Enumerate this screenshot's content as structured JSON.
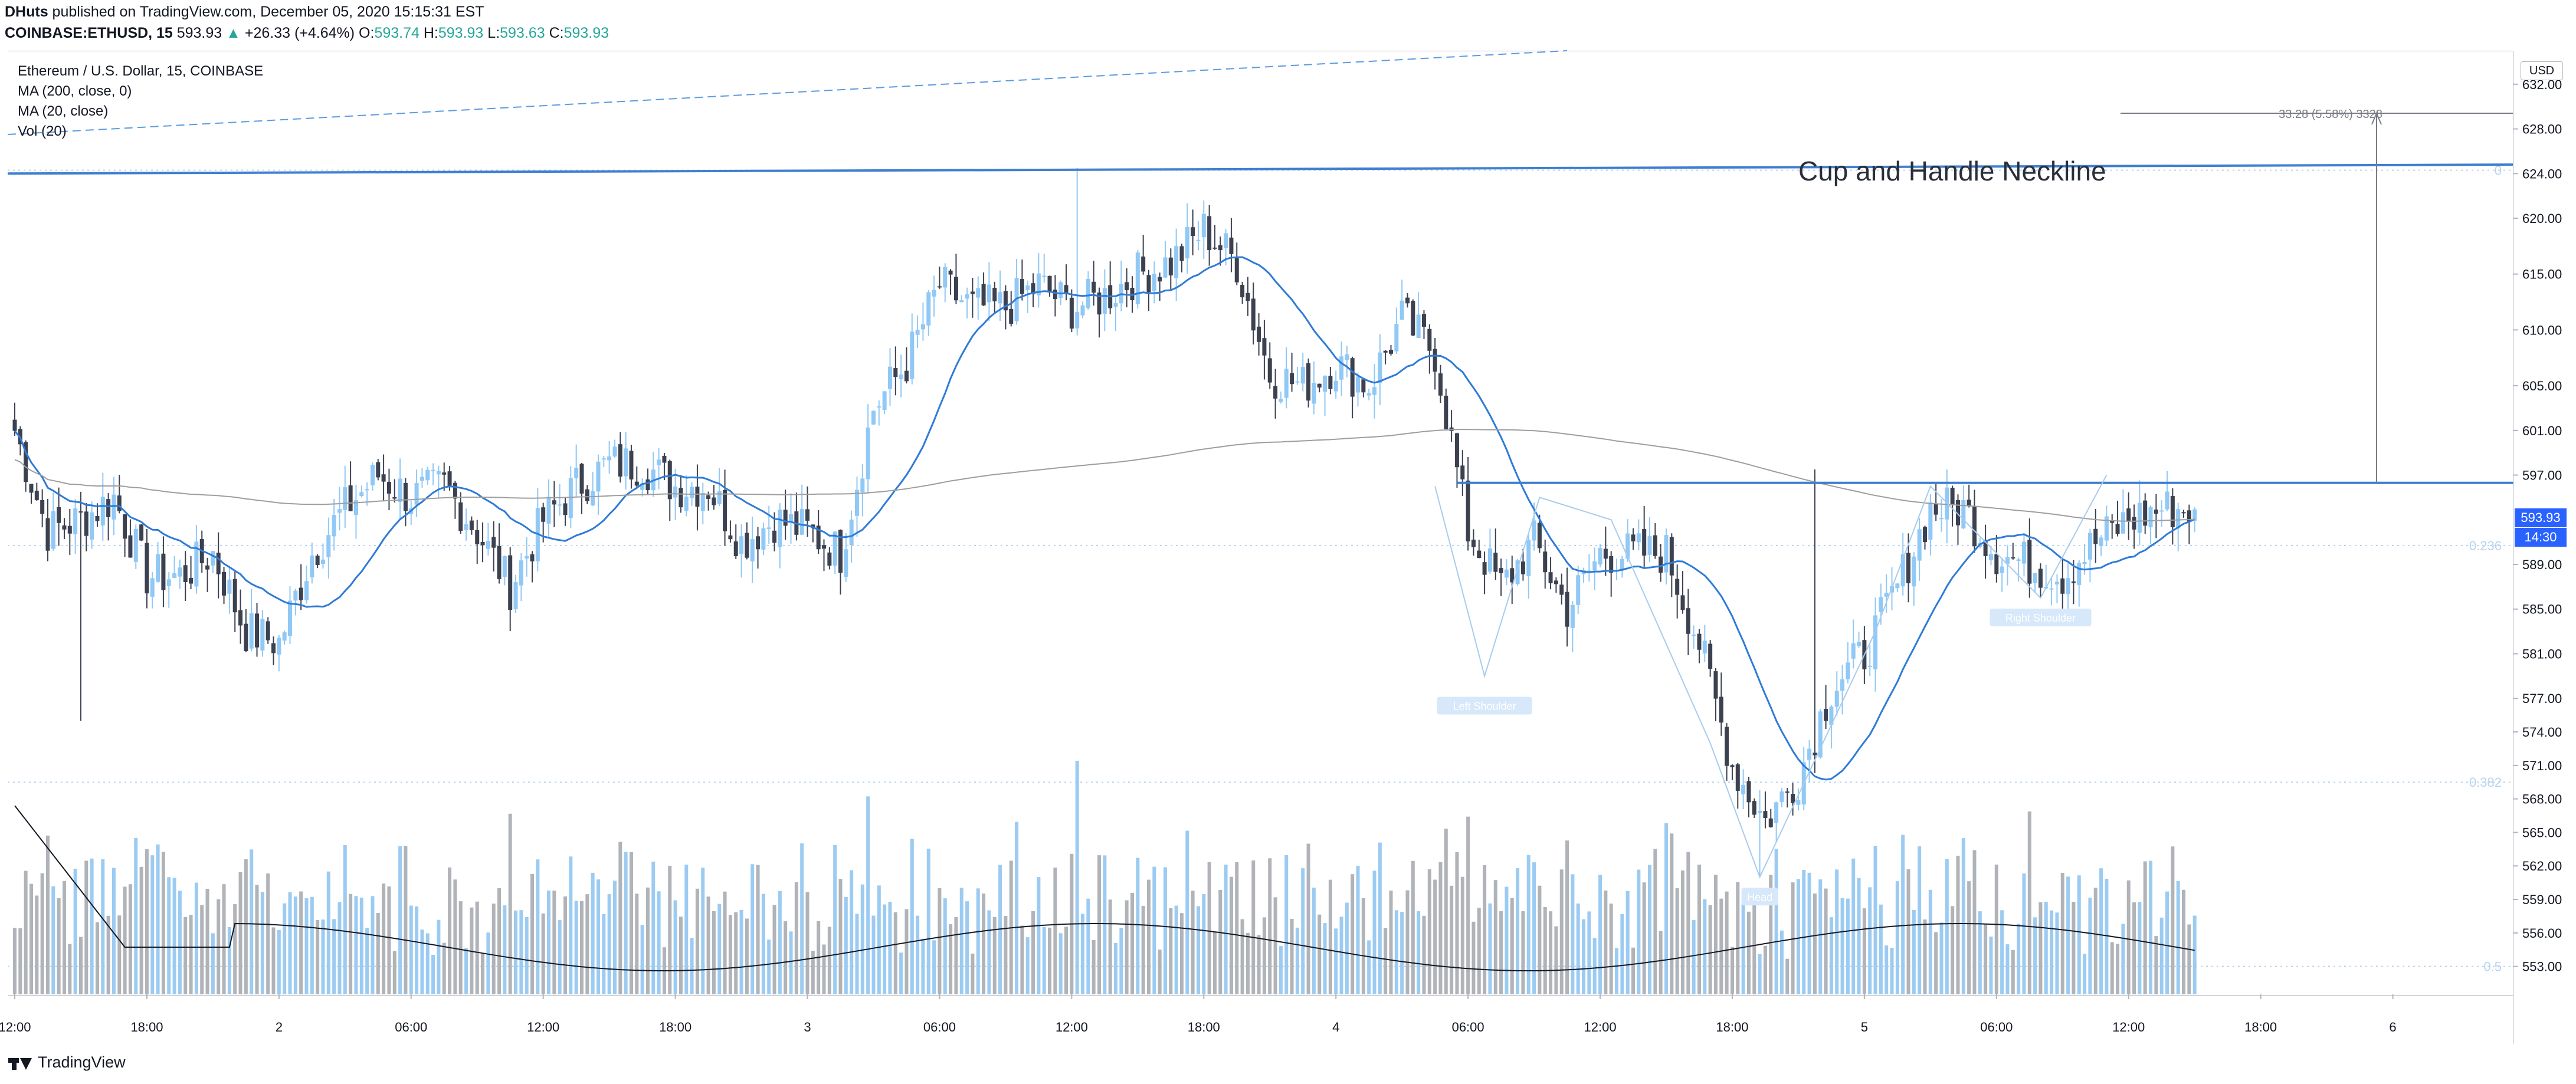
{
  "header": {
    "author": "DHuts",
    "published": " published on TradingView.com, December 05, 2020 15:15:31 EST"
  },
  "quote": {
    "symbol": "COINBASE:ETHUSD, 15",
    "last": "593.93",
    "arrow": "▲",
    "change": "+26.33 (+4.64%)",
    "o_label": "O:",
    "o": "593.74",
    "h_label": "H:",
    "h": "593.93",
    "l_label": "L:",
    "l": "593.63",
    "c_label": "C:",
    "c": "593.93"
  },
  "legend": {
    "title": "Ethereum / U.S. Dollar, 15, COINBASE",
    "ma200": "MA (200, close, 0)",
    "ma20": "MA (20, close)",
    "vol": "Vol (20)"
  },
  "price_scale": {
    "currency": "USD",
    "last_price": "593.93",
    "countdown": "14:30"
  },
  "footer": {
    "brand": "TradingView"
  },
  "colors": {
    "up": "#90c8f6",
    "down": "#3c4150",
    "ma20": "#2f7bd6",
    "ma200": "#9e9e9e",
    "drawing": "#3f7fd0",
    "pattern": "#a8cbed",
    "vol_up": "#9ccbf2",
    "vol_down": "#b0b3b8",
    "fib": "#b9d3ee"
  },
  "chart_data": {
    "type": "candlestick",
    "title": "Ethereum / U.S. Dollar, 15, COINBASE",
    "ylim": [
      550.5,
      635
    ],
    "y_ticks": [
      "632.00",
      "628.00",
      "624.00",
      "620.00",
      "615.00",
      "610.00",
      "605.00",
      "601.00",
      "597.00",
      "593.93",
      "589.00",
      "585.00",
      "581.00",
      "577.00",
      "574.00",
      "571.00",
      "568.00",
      "565.00",
      "562.00",
      "559.00",
      "556.00",
      "553.00"
    ],
    "y_tick_values": [
      632,
      628,
      624,
      620,
      615,
      610,
      605,
      601,
      597,
      593.93,
      589,
      585,
      581,
      577,
      574,
      571,
      568,
      565,
      562,
      559,
      556,
      553
    ],
    "x_ticks": [
      {
        "label": "12:00",
        "t": 0
      },
      {
        "label": "18:00",
        "t": 24
      },
      {
        "label": "2",
        "t": 48
      },
      {
        "label": "06:00",
        "t": 72
      },
      {
        "label": "12:00",
        "t": 96
      },
      {
        "label": "18:00",
        "t": 120
      },
      {
        "label": "3",
        "t": 144
      },
      {
        "label": "06:00",
        "t": 168
      },
      {
        "label": "12:00",
        "t": 192
      },
      {
        "label": "18:00",
        "t": 216
      },
      {
        "label": "4",
        "t": 240
      },
      {
        "label": "06:00",
        "t": 264
      },
      {
        "label": "12:00",
        "t": 288
      },
      {
        "label": "18:00",
        "t": 312
      },
      {
        "label": "5",
        "t": 336
      },
      {
        "label": "06:00",
        "t": 360
      },
      {
        "label": "12:00",
        "t": 384
      },
      {
        "label": "18:00",
        "t": 408
      },
      {
        "label": "6",
        "t": 432
      }
    ],
    "close_anchors": [
      [
        0,
        601
      ],
      [
        6,
        592
      ],
      [
        12,
        593
      ],
      [
        18,
        595
      ],
      [
        24,
        588
      ],
      [
        30,
        588
      ],
      [
        36,
        590
      ],
      [
        42,
        583
      ],
      [
        48,
        582
      ],
      [
        54,
        590
      ],
      [
        60,
        594
      ],
      [
        66,
        597
      ],
      [
        72,
        595
      ],
      [
        78,
        596
      ],
      [
        84,
        592
      ],
      [
        90,
        587
      ],
      [
        96,
        593
      ],
      [
        102,
        596
      ],
      [
        108,
        598
      ],
      [
        114,
        598
      ],
      [
        120,
        596
      ],
      [
        126,
        596
      ],
      [
        132,
        591
      ],
      [
        138,
        593
      ],
      [
        144,
        592
      ],
      [
        150,
        590
      ],
      [
        156,
        603
      ],
      [
        162,
        607
      ],
      [
        168,
        614
      ],
      [
        174,
        612
      ],
      [
        180,
        612
      ],
      [
        186,
        614
      ],
      [
        192,
        612
      ],
      [
        198,
        613
      ],
      [
        204,
        615
      ],
      [
        210,
        616
      ],
      [
        216,
        619
      ],
      [
        222,
        616
      ],
      [
        228,
        606
      ],
      [
        234,
        605
      ],
      [
        240,
        607
      ],
      [
        246,
        605
      ],
      [
        252,
        611
      ],
      [
        258,
        608
      ],
      [
        264,
        592
      ],
      [
        270,
        587
      ],
      [
        276,
        591
      ],
      [
        282,
        585
      ],
      [
        288,
        590
      ],
      [
        294,
        590
      ],
      [
        300,
        590
      ],
      [
        306,
        582
      ],
      [
        312,
        571
      ],
      [
        318,
        566
      ],
      [
        324,
        570
      ],
      [
        330,
        578
      ],
      [
        336,
        581
      ],
      [
        342,
        587
      ],
      [
        348,
        594
      ],
      [
        354,
        594
      ],
      [
        360,
        590
      ],
      [
        366,
        589
      ],
      [
        372,
        588
      ],
      [
        378,
        591
      ],
      [
        384,
        593
      ],
      [
        390,
        594
      ],
      [
        396,
        593.93
      ]
    ],
    "annotations": {
      "neckline_label": "Cup and Handle Neckline",
      "measure_label": "33.28 (5.58%) 3328",
      "left_shoulder": "Left Shoulder",
      "head": "Head",
      "right_shoulder": "Right Shoulder",
      "fib_levels": [
        {
          "label": "0",
          "value": 624.3
        },
        {
          "label": "0.236",
          "value": 590.7
        },
        {
          "label": "0.382",
          "value": 569.5
        },
        {
          "label": "0.5",
          "value": 553.0
        }
      ]
    }
  }
}
